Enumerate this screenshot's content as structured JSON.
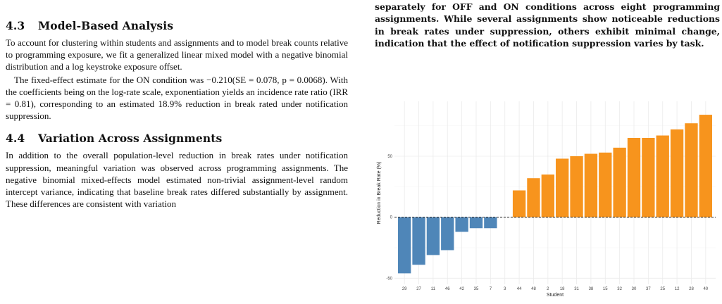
{
  "left": {
    "section_43": {
      "number": "4.3",
      "title": "Model-Based Analysis",
      "paragraph1": "To account for clustering within students and assignments and to model break counts relative to programming exposure, we fit a generalized linear mixed model with a negative binomial distribution and a log keystroke exposure offset.",
      "paragraph2": "The fixed-effect estimate for the ON condition was −0.210(SE = 0.078, p = 0.0068). With the coefficients being on the log-rate scale, exponentiation yields an incidence rate ratio (IRR = 0.81), corresponding to an estimated 18.9% reduction in break rated under notification suppression."
    },
    "section_44": {
      "number": "4.4",
      "title": "Variation Across Assignments",
      "paragraph1": "In addition to the overall population-level reduction in break rates under notification suppression, meaningful variation was observed across programming assignments. The negative binomial mixed-effects model estimated non-trivial assignment-level random intercept variance, indicating that baseline break rates differed substantially by assignment. These differences are consistent with variation"
    }
  },
  "right": {
    "caption": "separately for OFF and ON conditions across eight programming assignments. While several assignments show noticeable reductions in break rates under suppression, others exhibit minimal change, indication that the effect of notification suppression varies by task."
  },
  "chart_data": {
    "type": "bar",
    "title": "",
    "xlabel": "Student",
    "ylabel": "Reduction in Break Rate (%)",
    "ylim": [
      -55,
      95
    ],
    "yticks": [
      -50,
      0,
      50
    ],
    "grid": true,
    "legend": "none",
    "reference_line": 0,
    "categories": [
      "29",
      "27",
      "11",
      "46",
      "42",
      "35",
      "7",
      "3",
      "44",
      "48",
      "2",
      "18",
      "31",
      "38",
      "15",
      "32",
      "30",
      "37",
      "25",
      "12",
      "28",
      "40"
    ],
    "values": [
      -46,
      -39,
      -31,
      -27,
      -12,
      -9,
      -9,
      0,
      22,
      32,
      35,
      48,
      50,
      52,
      53,
      57,
      65,
      65,
      67,
      72,
      77,
      84
    ],
    "colors": {
      "negative": "#4f86b8",
      "positive": "#f7941d",
      "grid": "#ebebeb",
      "zero_line": "#000000"
    }
  }
}
